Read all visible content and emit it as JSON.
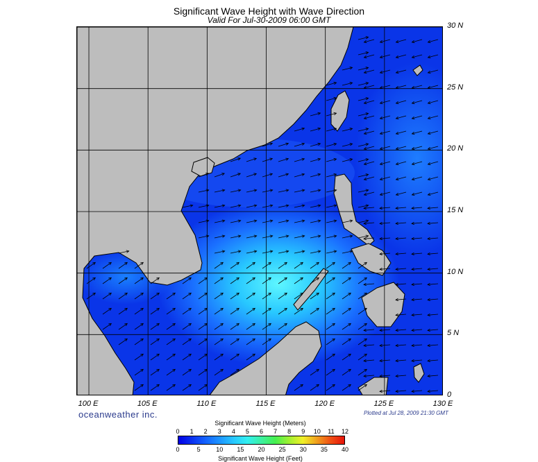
{
  "title": "Significant Wave Height with Wave Direction",
  "subtitle": "Valid For Jul-30-2009 06:00 GMT",
  "map": {
    "lon_range": [
      99,
      130
    ],
    "lat_range": [
      0,
      30
    ],
    "lat_labels": [
      {
        "lat": 30,
        "text": "30 N"
      },
      {
        "lat": 25,
        "text": "25 N"
      },
      {
        "lat": 20,
        "text": "20 N"
      },
      {
        "lat": 15,
        "text": "15 N"
      },
      {
        "lat": 10,
        "text": "10 N"
      },
      {
        "lat": 5,
        "text": "5 N"
      },
      {
        "lat": 0,
        "text": "0"
      }
    ],
    "lon_labels": [
      {
        "lon": 100,
        "text": "100 E"
      },
      {
        "lon": 105,
        "text": "105 E"
      },
      {
        "lon": 110,
        "text": "110 E"
      },
      {
        "lon": 115,
        "text": "115 E"
      },
      {
        "lon": 120,
        "text": "120 E"
      },
      {
        "lon": 125,
        "text": "125 E"
      },
      {
        "lon": 130,
        "text": "130 E"
      }
    ],
    "land_color": "#bdbdbd",
    "sea_color": "#0a35e8"
  },
  "branding": {
    "company": "oceanweather inc.",
    "plotted": "Plotted at Jul 28, 2009 21:30 GMT"
  },
  "legend": {
    "meters_title": "Significant Wave Height (Meters)",
    "feet_title": "Significant Wave Height (Feet)",
    "meters_ticks": [
      "0",
      "1",
      "2",
      "3",
      "4",
      "5",
      "6",
      "7",
      "8",
      "9",
      "10",
      "11",
      "12"
    ],
    "feet_ticks": [
      "0",
      "5",
      "10",
      "15",
      "20",
      "25",
      "30",
      "35",
      "40"
    ],
    "colors": [
      "#0000e6",
      "#0a32f0",
      "#1464ff",
      "#1e96ff",
      "#28c8ff",
      "#32f0f0",
      "#3cf0a0",
      "#46f050",
      "#a0f032",
      "#f0f028",
      "#f0a01e",
      "#f05014",
      "#e6140a"
    ]
  }
}
